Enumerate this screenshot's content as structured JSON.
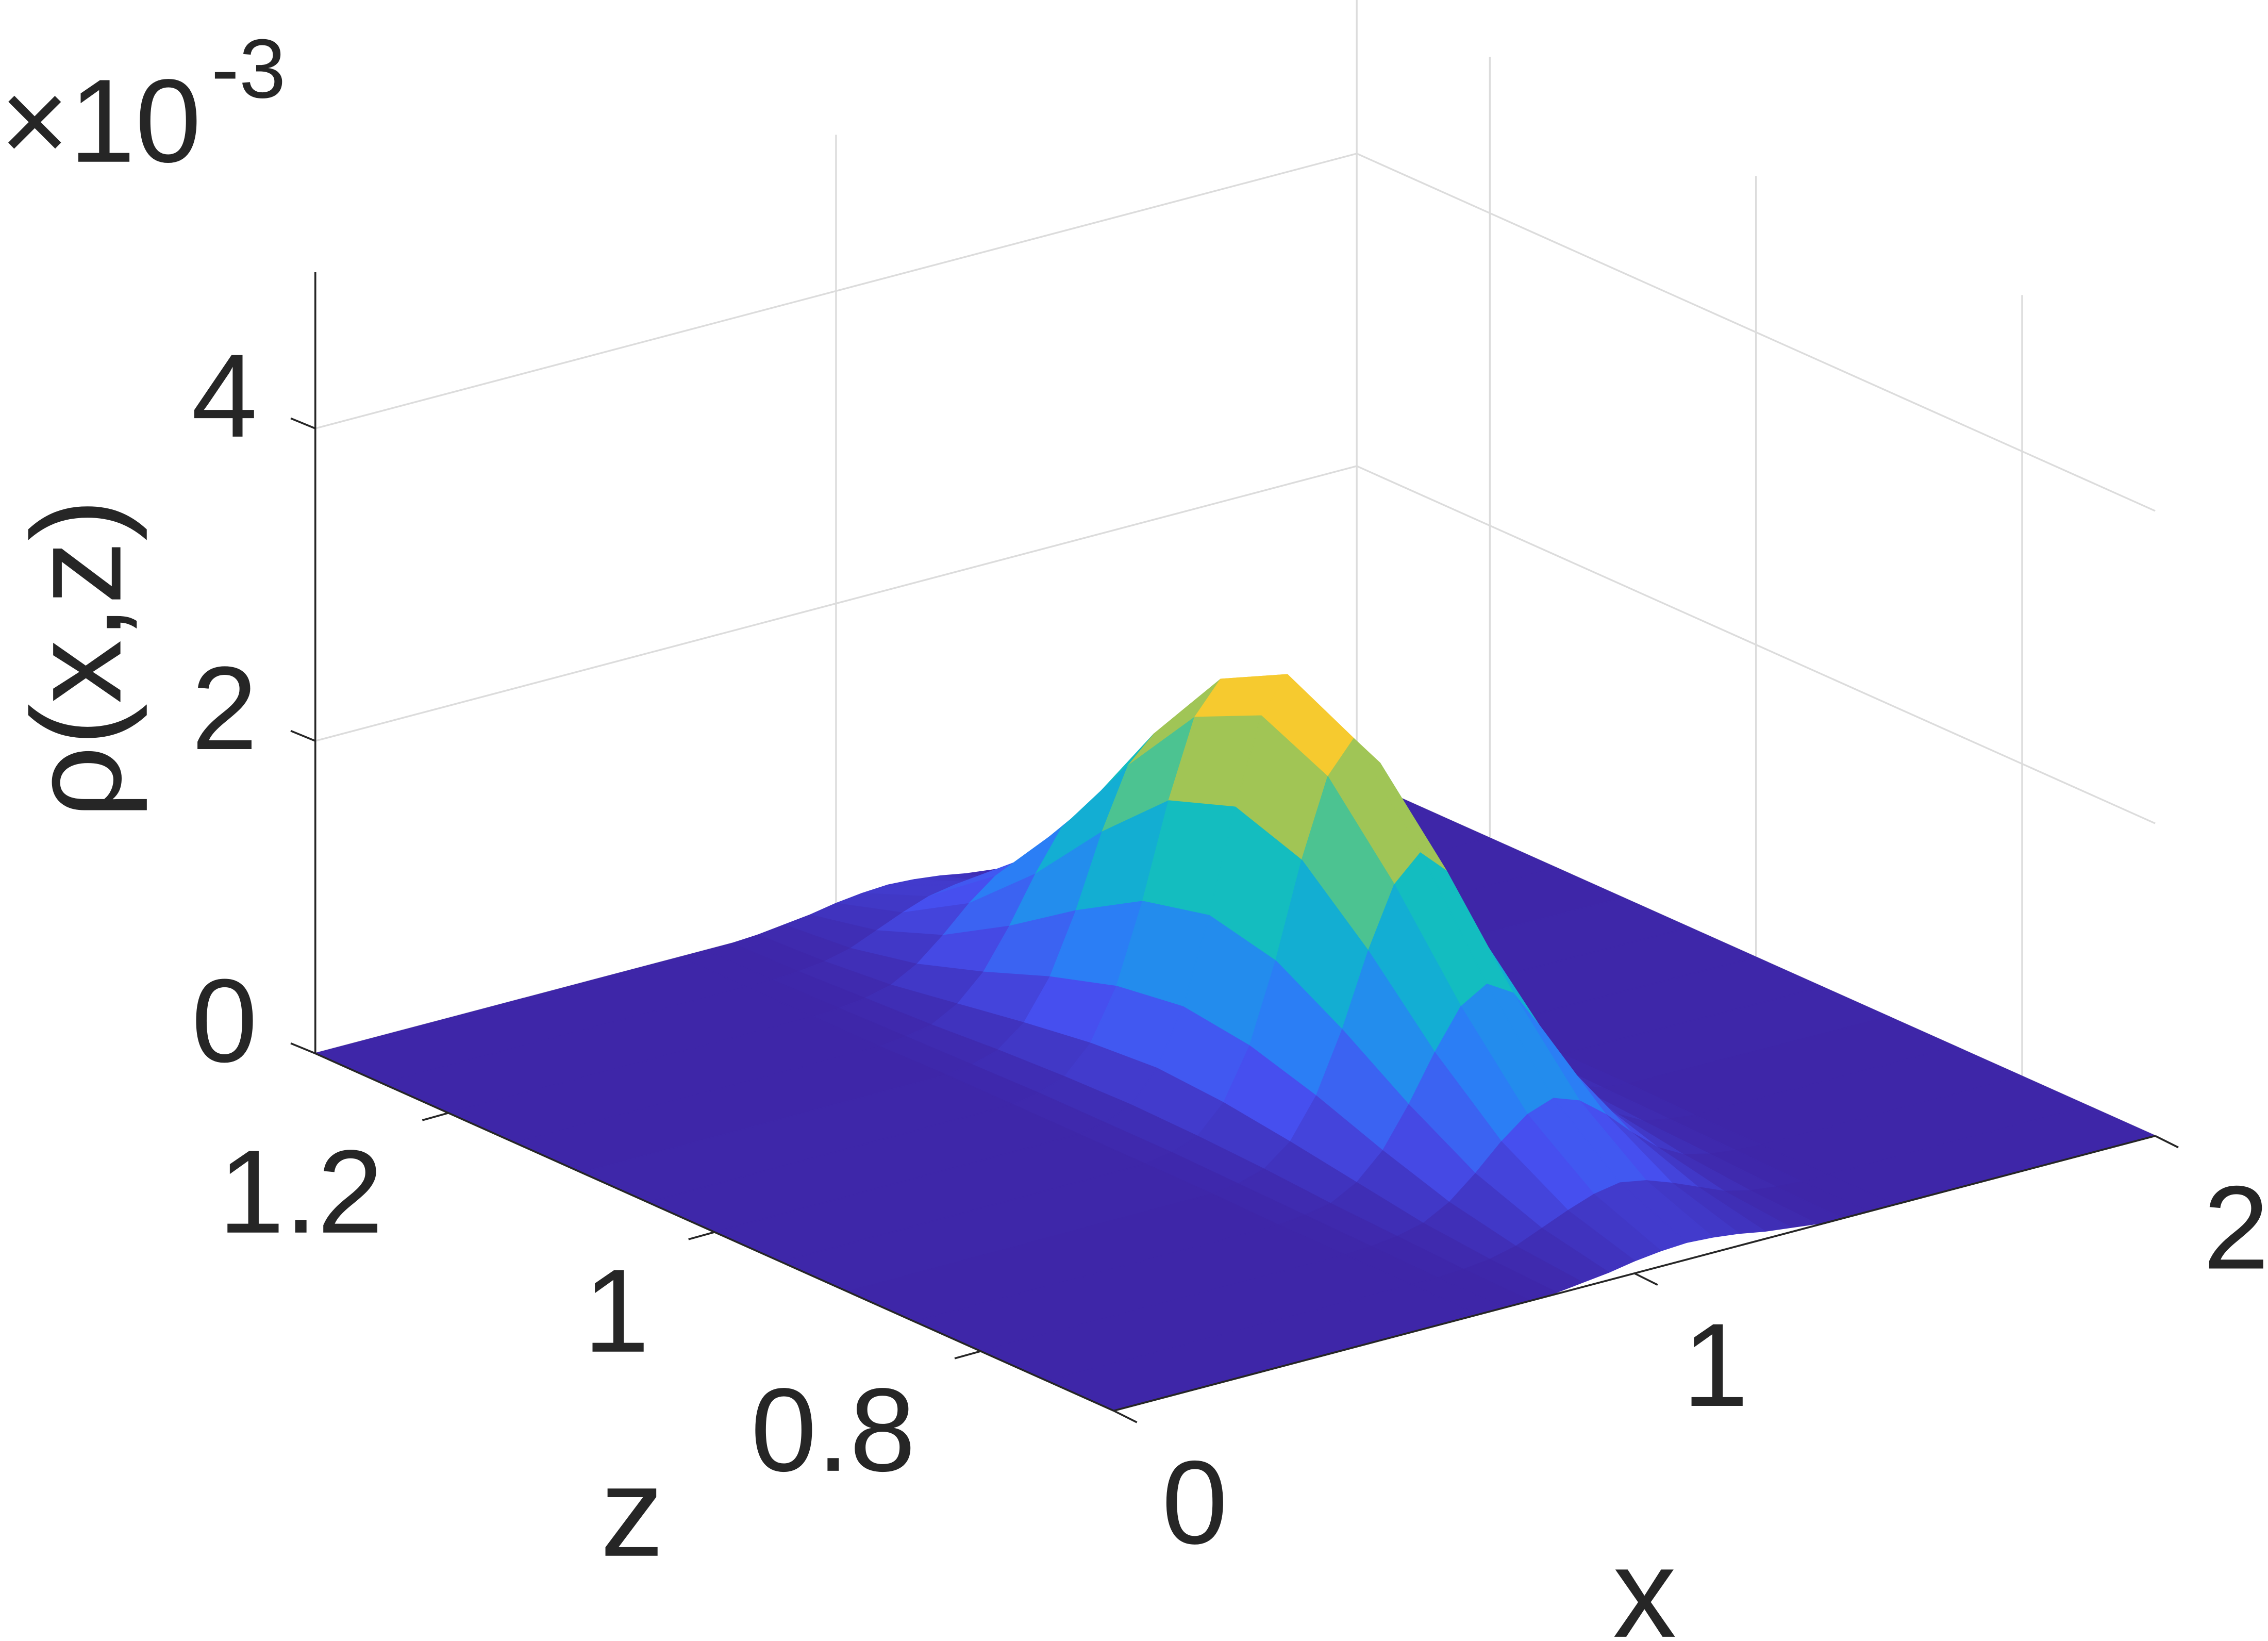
{
  "chart_data": {
    "type": "surface",
    "xlabel": "x",
    "ylabel": "z",
    "zlabel": "ρ(x,z)",
    "zlabel_multiplier": "×10",
    "zlabel_exponent": "-3",
    "xlim": [
      0,
      2
    ],
    "xticks": [
      0,
      1,
      2
    ],
    "ylim": [
      0.7,
      1.3
    ],
    "yticks": [
      0.8,
      1,
      1.2
    ],
    "zlim": [
      0,
      5
    ],
    "zticks": [
      0,
      2,
      4
    ],
    "grid": true,
    "colormap": "parula",
    "x": [
      0,
      0.7,
      0.75,
      0.8,
      0.85,
      0.9,
      0.95,
      1,
      1.05,
      1.1,
      1.15,
      1.2,
      1.25,
      1.3,
      1.35,
      1.4,
      1.45,
      1.5,
      2
    ],
    "y": [
      0.7,
      0.75,
      0.8,
      0.85,
      0.9,
      0.95,
      1,
      1.05,
      1.1,
      1.15,
      1.2,
      1.25,
      1.3
    ],
    "values": [
      [
        0,
        0,
        0,
        0,
        0.01,
        0.03,
        0.05,
        0.08,
        0.1,
        0.11,
        0.1,
        0.08,
        0.05,
        0.03,
        0.01,
        0,
        0,
        0,
        0
      ],
      [
        0,
        0,
        0,
        0.01,
        0.03,
        0.07,
        0.14,
        0.21,
        0.27,
        0.3,
        0.27,
        0.21,
        0.14,
        0.07,
        0.03,
        0.01,
        0,
        0,
        0
      ],
      [
        0,
        0,
        0.01,
        0.03,
        0.07,
        0.16,
        0.3,
        0.46,
        0.59,
        0.65,
        0.59,
        0.46,
        0.3,
        0.16,
        0.07,
        0.03,
        0.01,
        0,
        0
      ],
      [
        0,
        0,
        0.02,
        0.05,
        0.14,
        0.3,
        0.55,
        0.84,
        1.09,
        1.19,
        1.09,
        0.84,
        0.55,
        0.3,
        0.14,
        0.05,
        0.02,
        0,
        0
      ],
      [
        0,
        0.01,
        0.03,
        0.08,
        0.21,
        0.46,
        0.84,
        1.3,
        1.68,
        1.84,
        1.68,
        1.3,
        0.84,
        0.46,
        0.21,
        0.08,
        0.03,
        0.01,
        0
      ],
      [
        0,
        0.01,
        0.04,
        0.1,
        0.27,
        0.59,
        1.09,
        1.69,
        2.18,
        2.38,
        2.18,
        1.69,
        1.09,
        0.59,
        0.27,
        0.1,
        0.04,
        0.01,
        0
      ],
      [
        0,
        0.01,
        0.04,
        0.11,
        0.3,
        0.65,
        1.19,
        1.84,
        2.38,
        2.6,
        2.38,
        1.84,
        1.19,
        0.65,
        0.3,
        0.11,
        0.04,
        0.01,
        0
      ],
      [
        0,
        0.01,
        0.04,
        0.1,
        0.27,
        0.59,
        1.09,
        1.69,
        2.18,
        2.38,
        2.18,
        1.69,
        1.09,
        0.59,
        0.27,
        0.1,
        0.04,
        0.01,
        0
      ],
      [
        0,
        0.01,
        0.03,
        0.08,
        0.21,
        0.46,
        0.84,
        1.3,
        1.68,
        1.84,
        1.68,
        1.3,
        0.84,
        0.46,
        0.21,
        0.08,
        0.03,
        0.01,
        0
      ],
      [
        0,
        0,
        0.02,
        0.05,
        0.14,
        0.3,
        0.55,
        0.84,
        1.09,
        1.19,
        1.09,
        0.84,
        0.55,
        0.3,
        0.14,
        0.05,
        0.02,
        0,
        0
      ],
      [
        0,
        0,
        0.01,
        0.03,
        0.07,
        0.16,
        0.3,
        0.46,
        0.59,
        0.65,
        0.59,
        0.46,
        0.3,
        0.16,
        0.07,
        0.03,
        0.01,
        0,
        0
      ],
      [
        0,
        0,
        0,
        0.01,
        0.03,
        0.07,
        0.14,
        0.21,
        0.27,
        0.3,
        0.27,
        0.21,
        0.14,
        0.07,
        0.03,
        0.01,
        0,
        0,
        0
      ],
      [
        0,
        0,
        0,
        0,
        0.01,
        0.03,
        0.05,
        0.08,
        0.1,
        0.11,
        0.1,
        0.08,
        0.05,
        0.03,
        0.01,
        0,
        0,
        0,
        0
      ]
    ]
  }
}
